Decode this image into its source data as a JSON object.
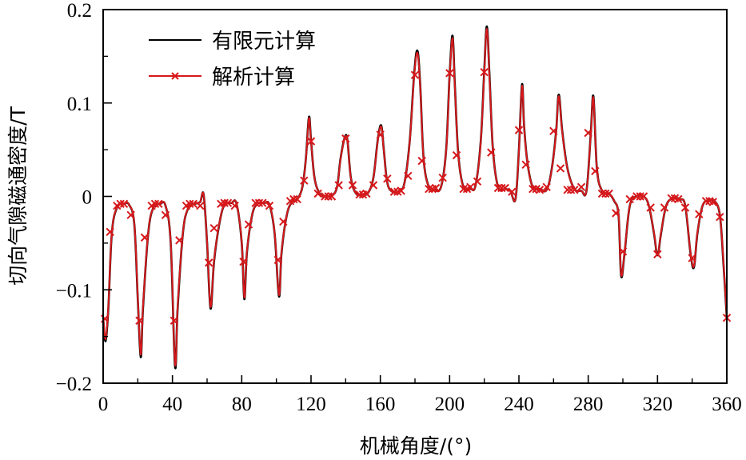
{
  "chart_data": {
    "type": "line",
    "title": "",
    "xlabel": "机械角度/(°)",
    "ylabel": "切向气隙磁通密度/T",
    "xlim": [
      0,
      360
    ],
    "ylim": [
      -0.2,
      0.2
    ],
    "x_ticks": [
      0,
      40,
      80,
      120,
      160,
      200,
      240,
      280,
      320,
      360
    ],
    "x_tick_labels": [
      "0",
      "40",
      "80",
      "120",
      "160",
      "200",
      "240",
      "280",
      "320",
      "360"
    ],
    "x_minor_ticks": [
      20,
      60,
      100,
      140,
      180,
      220,
      260,
      300,
      340
    ],
    "y_ticks": [
      -0.2,
      -0.1,
      0,
      0.1,
      0.2
    ],
    "y_tick_labels": [
      "−0.2",
      "−0.1",
      "0",
      "0.1",
      "0.2"
    ],
    "y_minor_ticks": [
      -0.15,
      -0.05,
      0.05,
      0.15
    ],
    "grid": false,
    "legend_position": "upper-left",
    "series": [
      {
        "name": "有限元计算",
        "color": "#000000",
        "marker": "none",
        "x": [
          0,
          1.4,
          3,
          5,
          8,
          12,
          15,
          18,
          20,
          21.7,
          23,
          26,
          29,
          33,
          36,
          39,
          41.5,
          43,
          46,
          49,
          53,
          56,
          58,
          60,
          62,
          64,
          67,
          70,
          74,
          77,
          80,
          81.5,
          83,
          86,
          89,
          93,
          96,
          99,
          101.5,
          103,
          106,
          109,
          112,
          115,
          117,
          118.8,
          120,
          122,
          125,
          128,
          132,
          135,
          137,
          139.5,
          141,
          143,
          146,
          150,
          153,
          156,
          158.5,
          160.5,
          162,
          164,
          167,
          171,
          174,
          177,
          179.5,
          181.4,
          183,
          185,
          188,
          191,
          195,
          198,
          200,
          201.7,
          203,
          205,
          208,
          212,
          215,
          218,
          220,
          221.5,
          223,
          225,
          228,
          232,
          235,
          238,
          240,
          241.8,
          243,
          245,
          248,
          252,
          256,
          259,
          261.5,
          263,
          265,
          268,
          272,
          276,
          279,
          281.5,
          283,
          285,
          288,
          292,
          295,
          297.5,
          299,
          301,
          304,
          308,
          312,
          315,
          318,
          320,
          322,
          325,
          329,
          333,
          336,
          339,
          341,
          343,
          346,
          350,
          353,
          356,
          358,
          360
        ],
        "y": [
          -0.13,
          -0.155,
          -0.12,
          -0.04,
          -0.012,
          -0.008,
          -0.009,
          -0.03,
          -0.11,
          -0.172,
          -0.12,
          -0.04,
          -0.012,
          -0.008,
          -0.01,
          -0.05,
          -0.182,
          -0.12,
          -0.04,
          -0.013,
          -0.008,
          -0.006,
          0.002,
          -0.05,
          -0.12,
          -0.07,
          -0.03,
          -0.009,
          -0.007,
          -0.008,
          -0.05,
          -0.11,
          -0.06,
          -0.02,
          -0.008,
          -0.007,
          -0.009,
          -0.04,
          -0.107,
          -0.06,
          -0.02,
          -0.006,
          -0.003,
          0.01,
          0.04,
          0.085,
          0.06,
          0.02,
          0.003,
          0.0,
          0.001,
          0.01,
          0.04,
          0.063,
          0.06,
          0.02,
          0.003,
          0.002,
          0.004,
          0.02,
          0.06,
          0.076,
          0.05,
          0.015,
          0.005,
          0.006,
          0.015,
          0.06,
          0.13,
          0.156,
          0.12,
          0.04,
          0.01,
          0.007,
          0.01,
          0.05,
          0.13,
          0.172,
          0.12,
          0.045,
          0.01,
          0.008,
          0.012,
          0.06,
          0.135,
          0.182,
          0.13,
          0.05,
          0.01,
          0.008,
          0.006,
          -0.003,
          0.05,
          0.12,
          0.075,
          0.035,
          0.01,
          0.008,
          0.007,
          0.03,
          0.07,
          0.109,
          0.07,
          0.03,
          0.008,
          0.006,
          0.006,
          0.068,
          0.107,
          0.03,
          0.006,
          0.003,
          -0.005,
          -0.02,
          -0.085,
          -0.06,
          -0.01,
          0.0,
          0.0,
          -0.01,
          -0.04,
          -0.063,
          -0.04,
          -0.01,
          -0.002,
          -0.003,
          -0.01,
          -0.06,
          -0.076,
          -0.04,
          -0.01,
          -0.004,
          -0.005,
          -0.02,
          -0.07,
          -0.13
        ]
      },
      {
        "name": "解析计算",
        "color": "#d7191c",
        "marker": "x",
        "marker_x": [
          1,
          4,
          8,
          10,
          12,
          16,
          21,
          24,
          28,
          30,
          32,
          36,
          41,
          44,
          48,
          50,
          52,
          56,
          61,
          64,
          68,
          70,
          72,
          76,
          81,
          84,
          88,
          90,
          92,
          96,
          101,
          104,
          108,
          110,
          112,
          116,
          120,
          124,
          128,
          130,
          132,
          136,
          140,
          144,
          148,
          150,
          152,
          156,
          160,
          164,
          168,
          170,
          172,
          176,
          180,
          184,
          188,
          190,
          192,
          196,
          200,
          204,
          208,
          210,
          212,
          216,
          220,
          224,
          228,
          230,
          232,
          236,
          240,
          244,
          248,
          250,
          252,
          256,
          260,
          264,
          268,
          270,
          272,
          276,
          280,
          284,
          288,
          290,
          292,
          296,
          300,
          304,
          308,
          310,
          312,
          316,
          320,
          324,
          328,
          330,
          332,
          336,
          340,
          344,
          348,
          350,
          352,
          356,
          360
        ],
        "marker_y": [
          -0.131,
          -0.038,
          -0.01,
          -0.008,
          -0.008,
          -0.02,
          -0.133,
          -0.044,
          -0.01,
          -0.008,
          -0.008,
          -0.02,
          -0.133,
          -0.047,
          -0.01,
          -0.008,
          -0.008,
          -0.01,
          -0.071,
          -0.034,
          -0.008,
          -0.007,
          -0.007,
          -0.01,
          -0.07,
          -0.03,
          -0.007,
          -0.007,
          -0.007,
          -0.01,
          -0.068,
          -0.027,
          -0.005,
          -0.003,
          -0.003,
          0.017,
          0.059,
          0.003,
          0.0,
          0.0,
          0.0,
          0.012,
          0.062,
          0.012,
          0.002,
          0.002,
          0.003,
          0.012,
          0.066,
          0.019,
          0.005,
          0.005,
          0.006,
          0.022,
          0.13,
          0.038,
          0.008,
          0.008,
          0.009,
          0.02,
          0.132,
          0.044,
          0.008,
          0.008,
          0.01,
          0.016,
          0.133,
          0.047,
          0.009,
          0.009,
          0.009,
          0.005,
          0.071,
          0.034,
          0.008,
          0.008,
          0.007,
          0.01,
          0.07,
          0.03,
          0.007,
          0.007,
          0.007,
          0.01,
          0.068,
          0.027,
          0.003,
          0.003,
          0.003,
          -0.018,
          -0.059,
          -0.003,
          0.0,
          0.0,
          0.0,
          -0.012,
          -0.062,
          -0.012,
          -0.002,
          -0.002,
          -0.003,
          -0.012,
          -0.066,
          -0.019,
          -0.005,
          -0.005,
          -0.006,
          -0.022,
          -0.13
        ]
      }
    ]
  },
  "legend": {
    "items": [
      {
        "label": "有限元计算",
        "color": "#000000",
        "marker": "none"
      },
      {
        "label": "解析计算",
        "color": "#d7191c",
        "marker": "x"
      }
    ]
  },
  "axes": {
    "xlabel": "机械角度/(°)",
    "ylabel": "切向气隙磁通密度/T"
  }
}
